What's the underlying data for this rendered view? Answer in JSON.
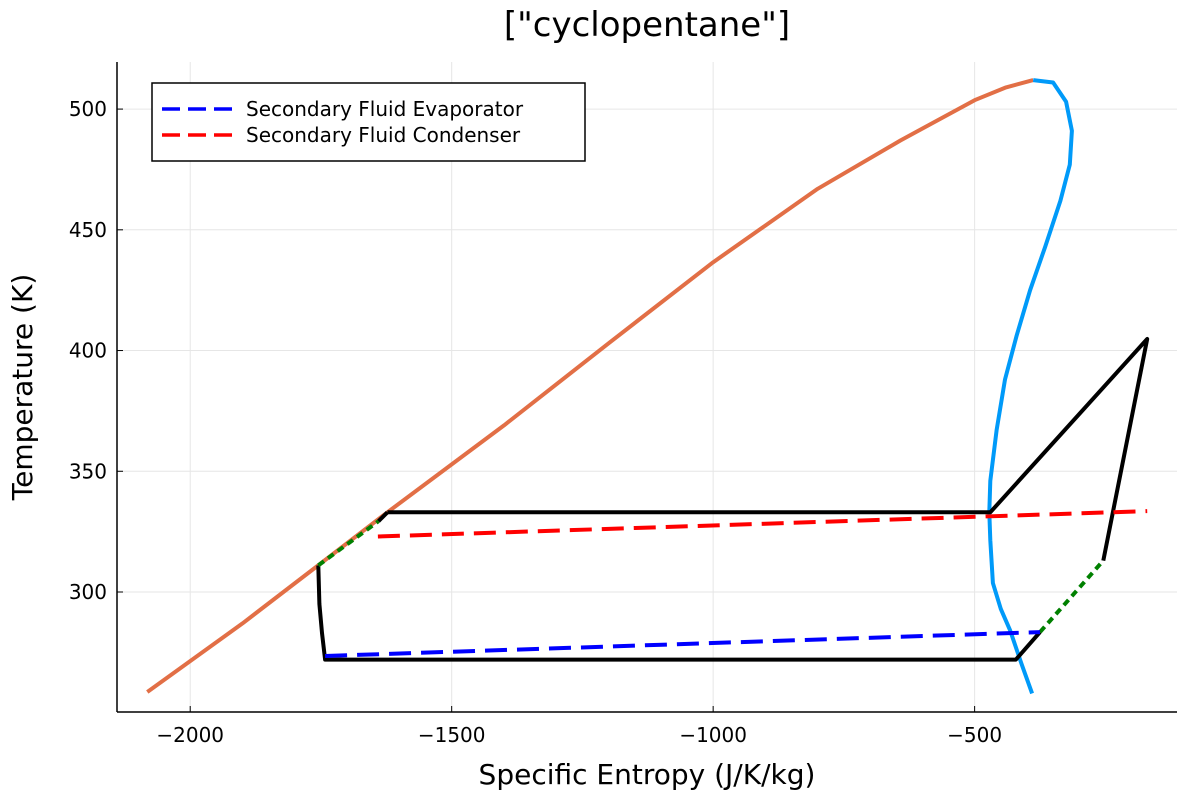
{
  "chart_data": {
    "type": "line",
    "title": "[\"cyclopentane\"]",
    "xlabel": "Specific Entropy (J/K/kg)",
    "ylabel": "Temperature (K)",
    "xlim": [
      -2140,
      -113
    ],
    "ylim": [
      250.3,
      519.5
    ],
    "xticks": [
      -2000,
      -1500,
      -1000,
      -500
    ],
    "yticks": [
      300,
      350,
      400,
      450,
      500
    ],
    "grid": true,
    "legend_position": "top-left",
    "series": [
      {
        "name": "Secondary Fluid Evaporator",
        "color": "#0000ff",
        "style": "dashed",
        "legend": true,
        "x": [
          -1742,
          -375
        ],
        "y": [
          273.5,
          283.4
        ]
      },
      {
        "name": "Secondary Fluid Condenser",
        "color": "#ff0000",
        "style": "dashed",
        "legend": true,
        "x": [
          -1641,
          -170
        ],
        "y": [
          323,
          333.5
        ]
      },
      {
        "color": "#e26f46",
        "style": "solid",
        "legend": false,
        "x": [
          -2082,
          -1900,
          -1623,
          -1400,
          -1200,
          -1000,
          -800,
          -642,
          -500,
          -440,
          -388
        ],
        "y": [
          258.6,
          287,
          333,
          369,
          403,
          436.6,
          467,
          487,
          503.7,
          509,
          512
        ]
      },
      {
        "color": "#009af9",
        "style": "solid",
        "legend": false,
        "x": [
          -388,
          -350,
          -325,
          -314,
          -318,
          -336,
          -365,
          -394,
          -420,
          -442,
          -458,
          -470,
          -472,
          -470,
          -465,
          -450,
          -432,
          -410,
          -390
        ],
        "y": [
          512,
          511,
          503,
          491,
          477,
          462,
          443,
          425,
          406,
          388,
          367,
          346,
          333,
          321.5,
          303.7,
          293,
          284,
          270,
          258
        ]
      },
      {
        "color": "#000000",
        "style": "solid",
        "legend": false,
        "x": [
          -1623,
          -470,
          -170,
          -254
        ],
        "y": [
          333,
          333,
          404.8,
          313
        ]
      },
      {
        "color": "#000000",
        "style": "solid",
        "legend": false,
        "x": [
          -1640,
          -1623
        ],
        "y": [
          329.3,
          333
        ]
      },
      {
        "color": "#000000",
        "style": "solid",
        "legend": false,
        "x": [
          -1755,
          -1753,
          -1748,
          -1742,
          -421,
          -375
        ],
        "y": [
          311,
          295,
          283,
          272,
          272,
          283.4
        ]
      },
      {
        "color": "#008000",
        "style": "dotted",
        "legend": false,
        "x": [
          -1755,
          -1640
        ],
        "y": [
          311,
          329.3
        ]
      },
      {
        "color": "#008000",
        "style": "dotted",
        "legend": false,
        "x": [
          -375,
          -254
        ],
        "y": [
          283.4,
          313
        ]
      }
    ]
  }
}
